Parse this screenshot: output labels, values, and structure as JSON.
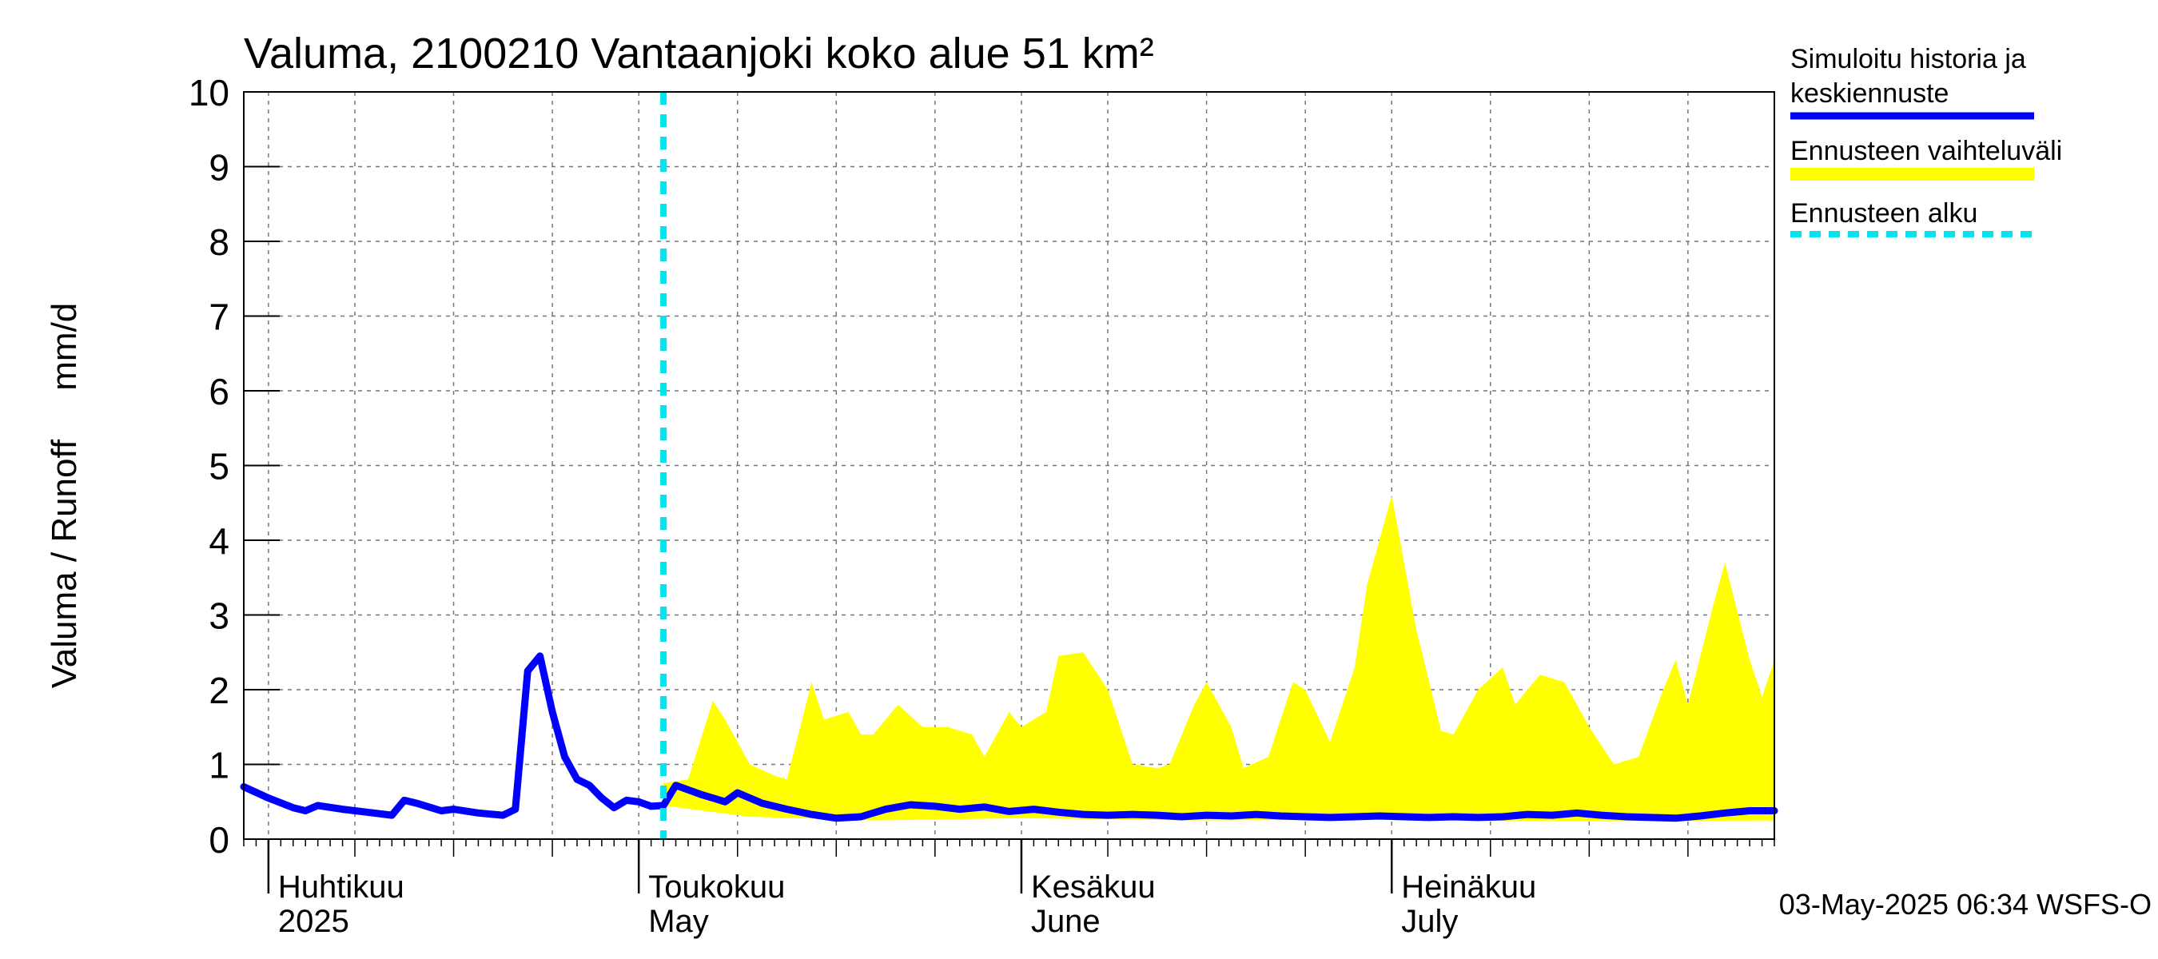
{
  "chart_data": {
    "type": "area",
    "title": "Valuma, 2100210 Vantaanjoki koko alue 51 km²",
    "ylabel": "Valuma / Runoff     mm/d",
    "ylim": [
      0,
      10
    ],
    "yticks": [
      0,
      1,
      2,
      3,
      4,
      5,
      6,
      7,
      8,
      9,
      10
    ],
    "x_range": [
      "2025-03-30",
      "2025-08-01"
    ],
    "grid": true,
    "legend_position": "right",
    "month_labels": [
      {
        "date": "2025-04-01",
        "fi": "Huhtikuu",
        "en": "2025"
      },
      {
        "date": "2025-05-01",
        "fi": "Toukokuu",
        "en": "May"
      },
      {
        "date": "2025-06-01",
        "fi": "Kesäkuu",
        "en": "June"
      },
      {
        "date": "2025-07-01",
        "fi": "Heinäkuu",
        "en": "July"
      }
    ],
    "forecast_start": "2025-05-03",
    "footer": "03-May-2025 06:34 WSFS-O",
    "legend": [
      {
        "label": "Simuloitu historia ja keskiennuste",
        "color": "#0000ff",
        "style": "solid"
      },
      {
        "label": "Ennusteen vaihteluväli",
        "color": "#ffff00",
        "style": "band"
      },
      {
        "label": "Ennusteen alku",
        "color": "#00e5ee",
        "style": "dashed"
      }
    ],
    "series": [
      {
        "name": "Simuloitu historia ja keskiennuste",
        "color": "#0000ff",
        "points": [
          [
            "2025-03-30",
            0.7
          ],
          [
            "2025-04-01",
            0.55
          ],
          [
            "2025-04-03",
            0.42
          ],
          [
            "2025-04-04",
            0.38
          ],
          [
            "2025-04-05",
            0.45
          ],
          [
            "2025-04-07",
            0.4
          ],
          [
            "2025-04-09",
            0.36
          ],
          [
            "2025-04-11",
            0.32
          ],
          [
            "2025-04-12",
            0.52
          ],
          [
            "2025-04-13",
            0.48
          ],
          [
            "2025-04-15",
            0.38
          ],
          [
            "2025-04-16",
            0.4
          ],
          [
            "2025-04-18",
            0.35
          ],
          [
            "2025-04-20",
            0.32
          ],
          [
            "2025-04-21",
            0.4
          ],
          [
            "2025-04-22",
            2.25
          ],
          [
            "2025-04-23",
            2.45
          ],
          [
            "2025-04-24",
            1.7
          ],
          [
            "2025-04-25",
            1.1
          ],
          [
            "2025-04-26",
            0.8
          ],
          [
            "2025-04-27",
            0.72
          ],
          [
            "2025-04-28",
            0.55
          ],
          [
            "2025-04-29",
            0.42
          ],
          [
            "2025-04-30",
            0.52
          ],
          [
            "2025-05-01",
            0.5
          ],
          [
            "2025-05-02",
            0.44
          ],
          [
            "2025-05-03",
            0.45
          ],
          [
            "2025-05-04",
            0.72
          ],
          [
            "2025-05-05",
            0.66
          ],
          [
            "2025-05-06",
            0.6
          ],
          [
            "2025-05-08",
            0.5
          ],
          [
            "2025-05-09",
            0.62
          ],
          [
            "2025-05-11",
            0.48
          ],
          [
            "2025-05-13",
            0.4
          ],
          [
            "2025-05-15",
            0.33
          ],
          [
            "2025-05-17",
            0.28
          ],
          [
            "2025-05-19",
            0.3
          ],
          [
            "2025-05-21",
            0.4
          ],
          [
            "2025-05-23",
            0.46
          ],
          [
            "2025-05-25",
            0.44
          ],
          [
            "2025-05-27",
            0.4
          ],
          [
            "2025-05-29",
            0.43
          ],
          [
            "2025-05-31",
            0.37
          ],
          [
            "2025-06-02",
            0.4
          ],
          [
            "2025-06-04",
            0.36
          ],
          [
            "2025-06-06",
            0.33
          ],
          [
            "2025-06-08",
            0.32
          ],
          [
            "2025-06-10",
            0.33
          ],
          [
            "2025-06-12",
            0.32
          ],
          [
            "2025-06-14",
            0.3
          ],
          [
            "2025-06-16",
            0.32
          ],
          [
            "2025-06-18",
            0.31
          ],
          [
            "2025-06-20",
            0.33
          ],
          [
            "2025-06-22",
            0.31
          ],
          [
            "2025-06-24",
            0.3
          ],
          [
            "2025-06-26",
            0.29
          ],
          [
            "2025-06-28",
            0.3
          ],
          [
            "2025-06-30",
            0.31
          ],
          [
            "2025-07-02",
            0.3
          ],
          [
            "2025-07-04",
            0.29
          ],
          [
            "2025-07-06",
            0.3
          ],
          [
            "2025-07-08",
            0.29
          ],
          [
            "2025-07-10",
            0.3
          ],
          [
            "2025-07-12",
            0.33
          ],
          [
            "2025-07-14",
            0.32
          ],
          [
            "2025-07-16",
            0.35
          ],
          [
            "2025-07-18",
            0.32
          ],
          [
            "2025-07-20",
            0.3
          ],
          [
            "2025-07-22",
            0.29
          ],
          [
            "2025-07-24",
            0.28
          ],
          [
            "2025-07-26",
            0.31
          ],
          [
            "2025-07-28",
            0.35
          ],
          [
            "2025-07-30",
            0.38
          ],
          [
            "2025-08-01",
            0.38
          ]
        ]
      },
      {
        "name": "Ennusteen vaihteluväli",
        "color": "#ffff00",
        "upper": [
          [
            "2025-05-03",
            0.75
          ],
          [
            "2025-05-05",
            0.8
          ],
          [
            "2025-05-07",
            1.85
          ],
          [
            "2025-05-08",
            1.6
          ],
          [
            "2025-05-10",
            1.0
          ],
          [
            "2025-05-12",
            0.85
          ],
          [
            "2025-05-13",
            0.8
          ],
          [
            "2025-05-15",
            2.1
          ],
          [
            "2025-05-16",
            1.6
          ],
          [
            "2025-05-18",
            1.7
          ],
          [
            "2025-05-19",
            1.4
          ],
          [
            "2025-05-20",
            1.4
          ],
          [
            "2025-05-22",
            1.8
          ],
          [
            "2025-05-24",
            1.5
          ],
          [
            "2025-05-26",
            1.5
          ],
          [
            "2025-05-28",
            1.4
          ],
          [
            "2025-05-29",
            1.1
          ],
          [
            "2025-05-31",
            1.7
          ],
          [
            "2025-06-01",
            1.5
          ],
          [
            "2025-06-03",
            1.7
          ],
          [
            "2025-06-04",
            2.45
          ],
          [
            "2025-06-06",
            2.5
          ],
          [
            "2025-06-08",
            2.0
          ],
          [
            "2025-06-10",
            1.0
          ],
          [
            "2025-06-12",
            0.95
          ],
          [
            "2025-06-13",
            1.0
          ],
          [
            "2025-06-15",
            1.8
          ],
          [
            "2025-06-16",
            2.1
          ],
          [
            "2025-06-18",
            1.5
          ],
          [
            "2025-06-19",
            0.95
          ],
          [
            "2025-06-21",
            1.1
          ],
          [
            "2025-06-23",
            2.1
          ],
          [
            "2025-06-24",
            2.0
          ],
          [
            "2025-06-26",
            1.3
          ],
          [
            "2025-06-28",
            2.3
          ],
          [
            "2025-06-29",
            3.4
          ],
          [
            "2025-07-01",
            4.6
          ],
          [
            "2025-07-03",
            2.8
          ],
          [
            "2025-07-05",
            1.45
          ],
          [
            "2025-07-06",
            1.4
          ],
          [
            "2025-07-08",
            2.0
          ],
          [
            "2025-07-10",
            2.3
          ],
          [
            "2025-07-11",
            1.8
          ],
          [
            "2025-07-13",
            2.2
          ],
          [
            "2025-07-15",
            2.1
          ],
          [
            "2025-07-17",
            1.5
          ],
          [
            "2025-07-19",
            1.0
          ],
          [
            "2025-07-21",
            1.1
          ],
          [
            "2025-07-23",
            2.0
          ],
          [
            "2025-07-24",
            2.4
          ],
          [
            "2025-07-25",
            1.8
          ],
          [
            "2025-07-27",
            3.1
          ],
          [
            "2025-07-28",
            3.7
          ],
          [
            "2025-07-30",
            2.4
          ],
          [
            "2025-07-31",
            1.9
          ],
          [
            "2025-08-01",
            2.4
          ]
        ],
        "lower": [
          [
            "2025-05-03",
            0.45
          ],
          [
            "2025-05-10",
            0.3
          ],
          [
            "2025-05-20",
            0.25
          ],
          [
            "2025-06-01",
            0.28
          ],
          [
            "2025-06-15",
            0.25
          ],
          [
            "2025-07-01",
            0.26
          ],
          [
            "2025-07-15",
            0.24
          ],
          [
            "2025-08-01",
            0.25
          ]
        ]
      }
    ]
  }
}
